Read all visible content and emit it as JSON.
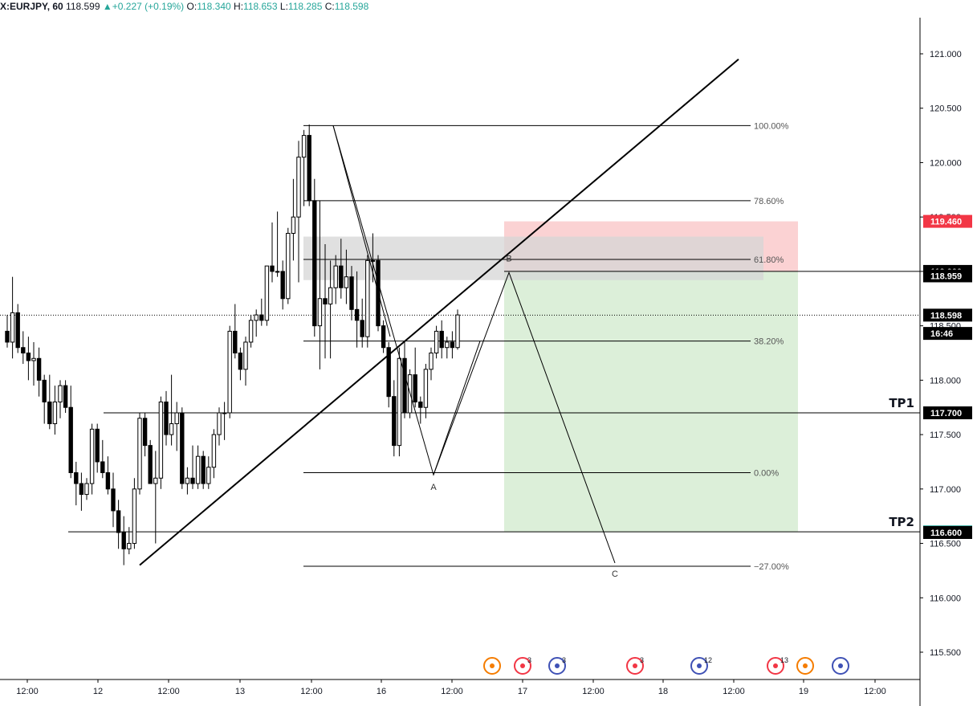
{
  "header": {
    "symbol": "X:EURJPY, 60",
    "last": "118.599",
    "change": "+0.227 (+0.19%)",
    "o_label": "O:",
    "o": "118.340",
    "h_label": "H:",
    "h": "118.653",
    "l_label": "L:",
    "l": "118.285",
    "c_label": "C:",
    "c": "118.598"
  },
  "chart_data": {
    "type": "candlestick",
    "ylim": [
      115.2,
      121.35
    ],
    "y_ticks": [
      "115.500",
      "116.000",
      "116.500",
      "117.000",
      "117.500",
      "118.000",
      "118.500",
      "119.000",
      "119.500",
      "120.000",
      "120.500",
      "121.000"
    ],
    "x_ticks": [
      "12:00",
      "12",
      "12:00",
      "13",
      "12:00",
      "16",
      "12:00",
      "17",
      "12:00",
      "18",
      "12:00",
      "19",
      "12:00"
    ],
    "candles": [
      [
        118.45,
        118.6,
        118.3,
        118.35
      ],
      [
        118.35,
        118.95,
        118.2,
        118.62
      ],
      [
        118.62,
        118.7,
        118.25,
        118.3
      ],
      [
        118.3,
        118.45,
        118.15,
        118.25
      ],
      [
        118.25,
        118.4,
        118.0,
        118.18
      ],
      [
        118.18,
        118.35,
        117.95,
        118.2
      ],
      [
        118.2,
        118.3,
        117.85,
        118.0
      ],
      [
        118.0,
        118.05,
        117.6,
        117.8
      ],
      [
        117.8,
        118.05,
        117.55,
        117.6
      ],
      [
        117.6,
        117.95,
        117.5,
        117.8
      ],
      [
        117.8,
        118.0,
        117.65,
        117.95
      ],
      [
        117.95,
        118.0,
        117.7,
        117.75
      ],
      [
        117.75,
        117.95,
        117.1,
        117.15
      ],
      [
        117.15,
        117.25,
        116.85,
        117.05
      ],
      [
        117.05,
        117.15,
        116.8,
        116.95
      ],
      [
        116.95,
        117.1,
        116.9,
        117.05
      ],
      [
        117.05,
        117.6,
        116.95,
        117.55
      ],
      [
        117.55,
        117.6,
        117.15,
        117.25
      ],
      [
        117.25,
        117.45,
        117.1,
        117.15
      ],
      [
        117.15,
        117.3,
        116.95,
        117.0
      ],
      [
        117.0,
        117.15,
        116.65,
        116.8
      ],
      [
        116.8,
        116.9,
        116.45,
        116.6
      ],
      [
        116.6,
        116.75,
        116.3,
        116.45
      ],
      [
        116.45,
        116.65,
        116.4,
        116.5
      ],
      [
        116.5,
        117.1,
        116.45,
        117.0
      ],
      [
        117.0,
        117.7,
        116.95,
        117.65
      ],
      [
        117.65,
        117.7,
        117.3,
        117.4
      ],
      [
        117.4,
        117.45,
        117.05,
        117.05
      ],
      [
        117.05,
        117.35,
        116.5,
        117.1
      ],
      [
        117.1,
        117.85,
        117.0,
        117.8
      ],
      [
        117.8,
        117.9,
        117.4,
        117.5
      ],
      [
        117.5,
        118.05,
        117.4,
        117.6
      ],
      [
        117.6,
        117.8,
        117.35,
        117.7
      ],
      [
        117.7,
        117.75,
        117.0,
        117.05
      ],
      [
        117.05,
        117.2,
        116.95,
        117.1
      ],
      [
        117.1,
        117.4,
        117.0,
        117.05
      ],
      [
        117.05,
        117.4,
        117.0,
        117.3
      ],
      [
        117.3,
        117.35,
        117.0,
        117.05
      ],
      [
        117.05,
        117.3,
        117.0,
        117.2
      ],
      [
        117.2,
        117.55,
        117.1,
        117.5
      ],
      [
        117.5,
        117.75,
        117.4,
        117.7
      ],
      [
        117.7,
        117.8,
        117.45,
        117.7
      ],
      [
        117.7,
        118.5,
        117.65,
        118.45
      ],
      [
        118.45,
        118.7,
        118.2,
        118.25
      ],
      [
        118.25,
        118.3,
        118.0,
        118.1
      ],
      [
        118.1,
        118.4,
        117.95,
        118.35
      ],
      [
        118.35,
        118.6,
        118.3,
        118.55
      ],
      [
        118.55,
        118.65,
        118.4,
        118.6
      ],
      [
        118.6,
        118.75,
        118.5,
        118.55
      ],
      [
        118.55,
        119.05,
        118.5,
        119.05
      ],
      [
        119.05,
        119.45,
        118.9,
        119.0
      ],
      [
        119.0,
        119.55,
        118.95,
        119.0
      ],
      [
        119.0,
        119.1,
        118.65,
        118.75
      ],
      [
        118.75,
        119.4,
        118.7,
        119.35
      ],
      [
        119.35,
        119.85,
        119.1,
        119.5
      ],
      [
        119.5,
        120.2,
        118.9,
        120.05
      ],
      [
        120.05,
        120.3,
        119.6,
        120.25
      ],
      [
        120.25,
        120.35,
        119.6,
        119.65
      ],
      [
        119.65,
        119.85,
        118.4,
        118.5
      ],
      [
        118.5,
        119.65,
        118.1,
        118.75
      ],
      [
        118.75,
        119.25,
        118.2,
        118.7
      ],
      [
        118.7,
        119.1,
        118.2,
        118.85
      ],
      [
        118.85,
        119.15,
        118.7,
        119.05
      ],
      [
        119.05,
        119.3,
        118.75,
        118.85
      ],
      [
        118.85,
        119.2,
        118.7,
        118.95
      ],
      [
        118.95,
        119.05,
        118.55,
        118.65
      ],
      [
        118.65,
        119.0,
        118.3,
        118.55
      ],
      [
        118.55,
        118.75,
        118.3,
        118.4
      ],
      [
        118.4,
        119.15,
        118.3,
        119.1
      ],
      [
        119.1,
        119.35,
        118.9,
        119.1
      ],
      [
        119.1,
        119.15,
        118.45,
        118.5
      ],
      [
        118.5,
        118.55,
        118.25,
        118.3
      ],
      [
        118.3,
        118.35,
        117.75,
        117.85
      ],
      [
        117.85,
        118.0,
        117.3,
        117.4
      ],
      [
        117.4,
        118.3,
        117.3,
        118.2
      ],
      [
        118.2,
        118.35,
        117.65,
        117.7
      ],
      [
        117.7,
        118.1,
        117.65,
        118.05
      ],
      [
        118.05,
        118.3,
        117.75,
        117.8
      ],
      [
        117.8,
        117.85,
        117.6,
        117.75
      ],
      [
        117.75,
        118.15,
        117.65,
        118.1
      ],
      [
        118.1,
        118.3,
        118.0,
        118.25
      ],
      [
        118.25,
        118.5,
        118.2,
        118.45
      ],
      [
        118.45,
        118.55,
        118.2,
        118.3
      ],
      [
        118.3,
        118.4,
        118.2,
        118.35
      ],
      [
        118.35,
        118.45,
        118.2,
        118.3
      ],
      [
        118.3,
        118.65,
        118.28,
        118.6
      ]
    ],
    "trendline": [
      [
        116.3,
        0
      ],
      [
        120.95,
        1
      ]
    ],
    "fib_levels": [
      {
        "label": "100.00%",
        "price": 120.34
      },
      {
        "label": "78.60%",
        "price": 119.65
      },
      {
        "label": "61.80%",
        "price": 119.11
      },
      {
        "label": "38.20%",
        "price": 118.36
      },
      {
        "label": "0.00%",
        "price": 117.15
      },
      {
        "label": "−27.00%",
        "price": 116.29
      }
    ],
    "points": [
      {
        "label": "A",
        "price": 117.13
      },
      {
        "label": "B",
        "price": 118.99
      },
      {
        "label": "C",
        "price": 116.32
      }
    ],
    "gray_zone": [
      118.92,
      119.32
    ],
    "position": {
      "stop": 119.46,
      "entry": 119.0,
      "target": 116.606
    },
    "levels": [
      {
        "label": "TP1",
        "price": 117.7
      },
      {
        "label": "TP2",
        "price": 116.606
      }
    ],
    "price_tags": [
      {
        "text": "119.460",
        "price": 119.46,
        "bg": "#f23645"
      },
      {
        "text": "119.000",
        "price": 119.0,
        "bg": "#000000"
      },
      {
        "text": "118.959",
        "price": 118.959,
        "bg": "#000000"
      },
      {
        "text": "118.598",
        "price": 118.598,
        "bg": "#000000"
      },
      {
        "text": "16:46",
        "price": 118.43,
        "bg": "#000000"
      },
      {
        "text": "117.700",
        "price": 117.7,
        "bg": "#000000"
      },
      {
        "text": "116.606",
        "price": 116.606,
        "bg": "#26a69a"
      },
      {
        "text": "116.600",
        "price": 116.6,
        "bg": "#000000"
      }
    ],
    "last_price": 118.598,
    "events": [
      "",
      "3",
      "3",
      "3",
      "12",
      "13",
      "",
      ""
    ]
  },
  "colors": {
    "stop_zone": "#fbd2d3",
    "target_zone": "#dcefd9",
    "gray_zone": "#d6d6d6",
    "axis": "#131722"
  }
}
